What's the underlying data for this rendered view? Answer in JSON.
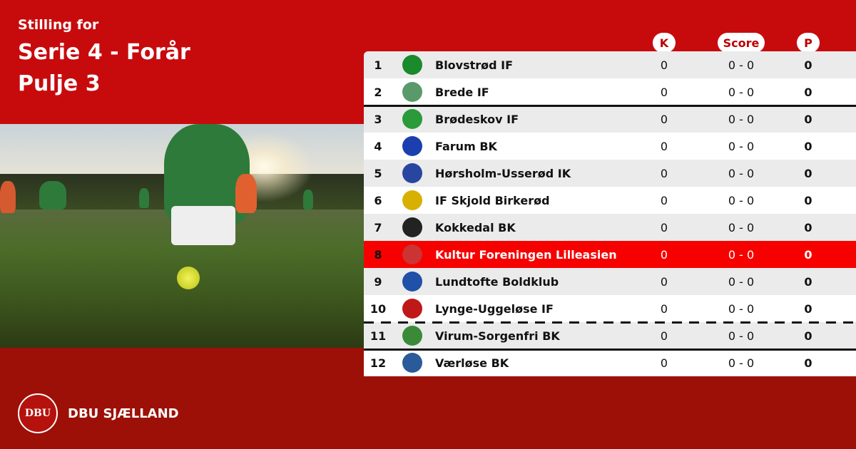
{
  "header": {
    "line1": "Stilling for",
    "line2": "Serie 4 - Forår",
    "line3": "Pulje 3"
  },
  "columns": {
    "k": "K",
    "score": "Score",
    "p": "P"
  },
  "colors": {
    "red": "#c70b0d",
    "dark_red": "#9c1007",
    "highlight": "#f70000"
  },
  "rows": [
    {
      "pos": "1",
      "name": "Blovstrød IF",
      "k": "0",
      "score": "0 - 0",
      "p": "0",
      "logo": "#1a8a2a"
    },
    {
      "pos": "2",
      "name": "Brede IF",
      "k": "0",
      "score": "0 - 0",
      "p": "0",
      "logo": "#5a9a6a"
    },
    {
      "pos": "3",
      "name": "Brødeskov IF",
      "k": "0",
      "score": "0 - 0",
      "p": "0",
      "logo": "#2a9a3a"
    },
    {
      "pos": "4",
      "name": "Farum BK",
      "k": "0",
      "score": "0 - 0",
      "p": "0",
      "logo": "#1c3fb0"
    },
    {
      "pos": "5",
      "name": "Hørsholm-Usserød IK",
      "k": "0",
      "score": "0 - 0",
      "p": "0",
      "logo": "#2846a0"
    },
    {
      "pos": "6",
      "name": "IF Skjold Birkerød",
      "k": "0",
      "score": "0 - 0",
      "p": "0",
      "logo": "#d8b000"
    },
    {
      "pos": "7",
      "name": "Kokkedal BK",
      "k": "0",
      "score": "0 - 0",
      "p": "0",
      "logo": "#222222"
    },
    {
      "pos": "8",
      "name": "Kultur Foreningen Lilleasien",
      "k": "0",
      "score": "0 - 0",
      "p": "0",
      "logo": "#cc3333"
    },
    {
      "pos": "9",
      "name": "Lundtofte Boldklub",
      "k": "0",
      "score": "0 - 0",
      "p": "0",
      "logo": "#2050a8"
    },
    {
      "pos": "10",
      "name": "Lynge-Uggeløse IF",
      "k": "0",
      "score": "0 - 0",
      "p": "0",
      "logo": "#c01818"
    },
    {
      "pos": "11",
      "name": "Virum-Sorgenfri BK",
      "k": "0",
      "score": "0 - 0",
      "p": "0",
      "logo": "#3a8a3a"
    },
    {
      "pos": "12",
      "name": "Værløse BK",
      "k": "0",
      "score": "0 - 0",
      "p": "0",
      "logo": "#2a5a9a"
    }
  ],
  "brand": {
    "name": "DBU SJÆLLAND",
    "seal_text": "DBU"
  }
}
